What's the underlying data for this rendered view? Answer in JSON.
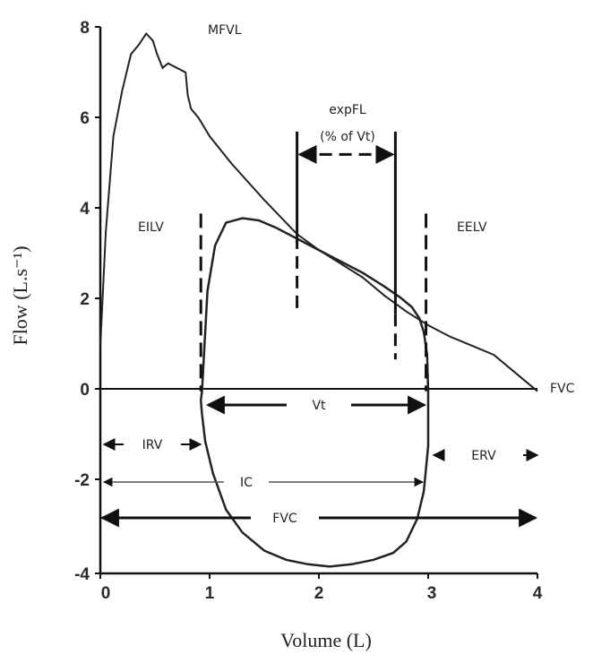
{
  "chart_data": {
    "type": "line",
    "xlabel": "Volume (L)",
    "ylabel": "Flow (L.s⁻¹)",
    "xlim": [
      0,
      4
    ],
    "ylim": [
      -4,
      8
    ],
    "x_ticks": [
      "0",
      "1",
      "2",
      "3",
      "4"
    ],
    "y_ticks": [
      "8",
      "6",
      "4",
      "2",
      "0",
      "-2",
      "-4"
    ],
    "series": [
      {
        "name": "MFVL",
        "x": [
          0.0,
          0.05,
          0.12,
          0.2,
          0.28,
          0.35,
          0.42,
          0.48,
          0.52,
          0.57,
          0.62,
          0.7,
          0.78,
          0.8,
          0.83,
          0.9,
          1.0,
          1.2,
          1.5,
          1.7,
          1.8,
          2.0,
          2.2,
          2.4,
          2.6,
          2.8,
          3.0,
          3.2,
          3.4,
          3.6,
          3.8,
          4.0
        ],
        "y": [
          1.0,
          3.5,
          5.6,
          6.6,
          7.4,
          7.6,
          7.85,
          7.7,
          7.4,
          7.1,
          7.2,
          7.1,
          7.0,
          6.5,
          6.2,
          6.0,
          5.6,
          5.0,
          4.2,
          3.7,
          3.45,
          3.1,
          2.8,
          2.5,
          2.1,
          1.75,
          1.45,
          1.2,
          1.0,
          0.8,
          0.4,
          0.0
        ]
      },
      {
        "name": "Vt",
        "x": [
          0.93,
          0.98,
          1.05,
          1.15,
          1.3,
          1.45,
          1.6,
          1.8,
          2.0,
          2.2,
          2.4,
          2.6,
          2.75,
          2.85,
          2.92,
          2.96,
          2.99,
          3.0,
          3.0,
          2.96,
          2.9,
          2.8,
          2.68,
          2.5,
          2.3,
          2.1,
          1.9,
          1.7,
          1.5,
          1.3,
          1.15,
          1.03,
          0.96,
          0.93,
          0.92,
          0.93
        ],
        "y": [
          0.0,
          2.2,
          3.2,
          3.7,
          3.8,
          3.75,
          3.6,
          3.35,
          3.1,
          2.85,
          2.6,
          2.3,
          2.05,
          1.85,
          1.6,
          1.3,
          0.8,
          0.0,
          -1.2,
          -2.2,
          -2.8,
          -3.3,
          -3.55,
          -3.7,
          -3.8,
          -3.85,
          -3.8,
          -3.7,
          -3.5,
          -3.1,
          -2.6,
          -1.8,
          -1.1,
          -0.5,
          -0.2,
          0.0
        ]
      }
    ],
    "annotations": {
      "mfvl": "MFVL",
      "expfl_line1": "expFL",
      "expfl_line2": "(% of Vt)",
      "eilv": "EILV",
      "eelv": "EELV",
      "fvc_right": "FVC",
      "vt": "Vt",
      "irv": "IRV",
      "erv": "ERV",
      "ic": "IC",
      "fvc_arrow": "FVC"
    },
    "marker_lines": {
      "eilv_x": 0.92,
      "eelv_x": 2.98,
      "expfl_start_x": 1.8,
      "expfl_end_x": 2.7
    }
  }
}
